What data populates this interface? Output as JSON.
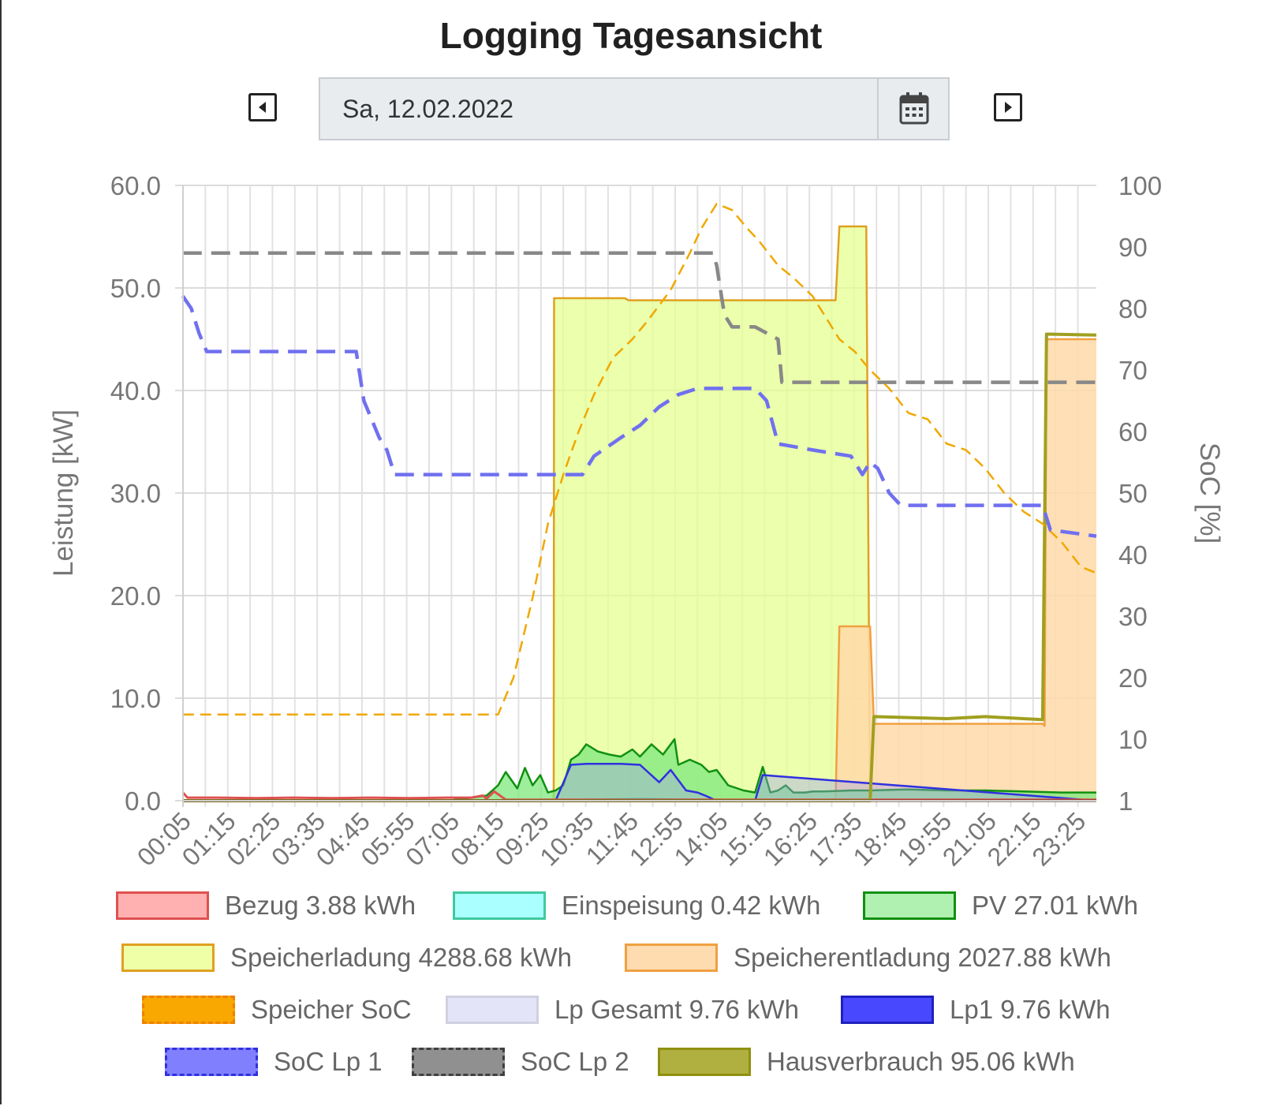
{
  "header": {
    "title": "Logging Tagesansicht",
    "date_value": "Sa, 12.02.2022"
  },
  "chart_data": {
    "type": "area",
    "y_left": {
      "label": "Leistung [kW]",
      "range": [
        0,
        60
      ],
      "ticks": [
        "0.0",
        "10.0",
        "20.0",
        "30.0",
        "40.0",
        "50.0",
        "60.0"
      ]
    },
    "y_right": {
      "label": "SoC [%]",
      "range": [
        0,
        100
      ],
      "ticks": [
        "1",
        "10",
        "20",
        "30",
        "40",
        "50",
        "60",
        "70",
        "80",
        "90",
        "100"
      ]
    },
    "x_ticks": [
      "00:05",
      "01:15",
      "02:25",
      "03:35",
      "04:45",
      "05:55",
      "07:05",
      "08:15",
      "09:25",
      "10:35",
      "11:45",
      "12:55",
      "14:05",
      "15:15",
      "16:25",
      "17:35",
      "18:45",
      "19:55",
      "21:05",
      "22:15",
      "23:25"
    ],
    "x_unit": "hours",
    "grid": true,
    "legend_position": "bottom",
    "series": [
      {
        "name": "Bezug 3.88 kWh",
        "axis": "left",
        "color": "#e05050",
        "x": [
          0.08,
          0.2,
          1.0,
          2.0,
          3.0,
          4.0,
          5.0,
          6.0,
          7.0,
          7.6,
          7.9,
          8.0,
          8.2,
          8.5,
          9.0,
          12.0,
          15.0,
          18.0,
          21.0,
          23.0,
          23.9
        ],
        "y": [
          0.8,
          0.3,
          0.3,
          0.25,
          0.3,
          0.25,
          0.3,
          0.25,
          0.3,
          0.3,
          0.5,
          0.2,
          0.9,
          0.1,
          0.1,
          0.1,
          0.1,
          0.1,
          0.1,
          0.1,
          0.1
        ]
      },
      {
        "name": "Einspeisung 0.42 kWh",
        "axis": "left",
        "color": "#40c8b0",
        "x": [
          0.08,
          8.0,
          10.0,
          12.0,
          14.0,
          16.0,
          23.9
        ],
        "y": [
          0,
          0,
          0.1,
          0.2,
          0.1,
          0,
          0
        ]
      },
      {
        "name": "PV 27.01 kWh",
        "axis": "left",
        "color": "#109010",
        "x": [
          0.08,
          7.0,
          8.0,
          8.3,
          8.5,
          8.8,
          9.0,
          9.2,
          9.4,
          9.6,
          9.8,
          10.0,
          10.2,
          10.4,
          10.6,
          10.9,
          11.2,
          11.5,
          11.8,
          12.0,
          12.3,
          12.6,
          12.9,
          13.0,
          13.3,
          13.6,
          13.8,
          14.0,
          14.3,
          14.7,
          15.0,
          15.2,
          15.4,
          15.6,
          15.8,
          16.0,
          16.3,
          16.5,
          16.8,
          17.5,
          18.0,
          19.0,
          20.0,
          21.0,
          22.0,
          23.0,
          23.9
        ],
        "y": [
          0,
          0,
          0.5,
          1.5,
          2.8,
          1.2,
          3.2,
          1.5,
          2.5,
          0.8,
          1.0,
          1.5,
          4.0,
          4.5,
          5.5,
          4.8,
          4.5,
          4.3,
          5.0,
          4.3,
          5.5,
          4.5,
          6.0,
          3.5,
          4.0,
          3.5,
          2.8,
          3.0,
          1.5,
          1.0,
          0.8,
          3.3,
          0.8,
          1.0,
          1.5,
          0.8,
          0.8,
          0.9,
          0.9,
          1.0,
          1.0,
          1.1,
          1.0,
          1.0,
          0.9,
          0.8,
          0.8
        ]
      },
      {
        "name": "Speicherladung 4288.68 kWh",
        "axis": "left",
        "color": "#e0a020",
        "x": [
          0.08,
          9.75,
          9.76,
          11.6,
          11.7,
          17.1,
          17.2,
          17.9,
          18.0,
          23.9
        ],
        "y": [
          0,
          0,
          49.0,
          49.0,
          48.8,
          48.8,
          56.0,
          56.0,
          0,
          0
        ]
      },
      {
        "name": "Speicherentladung 2027.88 kWh",
        "axis": "left",
        "color": "#f0a040",
        "x": [
          0.08,
          17.1,
          17.2,
          18.0,
          18.1,
          22.5,
          22.55,
          22.6,
          23.9
        ],
        "y": [
          0,
          0,
          17.0,
          17.0,
          7.5,
          7.5,
          7.3,
          45.0,
          45.0
        ]
      },
      {
        "name": "Speicher SoC",
        "axis": "right",
        "color": "#f0a800",
        "x": [
          0.08,
          8.3,
          8.7,
          9.2,
          9.6,
          10.0,
          10.4,
          10.8,
          11.3,
          11.8,
          12.2,
          12.8,
          13.3,
          13.6,
          14.0,
          14.4,
          14.8,
          15.1,
          15.6,
          16.0,
          16.5,
          16.8,
          17.2,
          17.6,
          18.0,
          18.5,
          19.0,
          19.5,
          20.0,
          20.5,
          21.0,
          21.5,
          22.0,
          22.5,
          23.0,
          23.5,
          23.9
        ],
        "y": [
          14,
          14,
          20,
          33,
          45,
          53,
          60,
          66,
          72,
          75,
          78,
          83,
          89,
          93,
          97,
          96,
          93,
          91,
          87,
          85,
          82,
          79,
          75,
          73,
          70,
          67,
          63,
          62,
          58,
          57,
          54,
          50,
          47,
          45,
          42,
          38,
          37
        ]
      },
      {
        "name": "Lp Gesamt 9.76 kWh",
        "axis": "left",
        "color": "#9090e0",
        "x": [
          0.08,
          9.8,
          10.2,
          10.6,
          11.0,
          11.5,
          12.0,
          12.5,
          12.8,
          13.2,
          13.5,
          13.7,
          14.0,
          14.6,
          15.0,
          15.2,
          23.9
        ],
        "y": [
          0,
          0,
          3.5,
          3.6,
          3.6,
          3.6,
          3.5,
          1.8,
          3.0,
          1.0,
          0.8,
          0.5,
          0,
          0,
          0,
          2.5,
          0
        ]
      },
      {
        "name": "Lp1 9.76 kWh",
        "axis": "left",
        "color": "#3030e0",
        "x": [
          0.08,
          9.8,
          10.2,
          10.6,
          11.0,
          11.5,
          12.0,
          12.5,
          12.8,
          13.2,
          13.5,
          13.7,
          14.0,
          14.6,
          15.0,
          15.2,
          23.9
        ],
        "y": [
          0,
          0,
          3.5,
          3.6,
          3.6,
          3.6,
          3.5,
          1.8,
          3.0,
          1.0,
          0.8,
          0.5,
          0,
          0,
          0,
          2.5,
          0
        ]
      },
      {
        "name": "SoC Lp 1",
        "axis": "right",
        "color": "#7070f0",
        "x": [
          0.08,
          0.3,
          0.5,
          0.7,
          4.6,
          4.8,
          5.0,
          5.2,
          5.4,
          5.6,
          10.5,
          10.8,
          11.5,
          12.0,
          12.5,
          13.0,
          13.5,
          14.0,
          14.5,
          15.0,
          15.3,
          15.6,
          16.5,
          17.5,
          17.8,
          18.0,
          18.2,
          18.5,
          18.8,
          22.5,
          22.7,
          23.9
        ],
        "y": [
          82,
          80,
          76,
          73,
          73,
          65,
          62,
          59,
          57,
          53,
          53,
          56,
          59,
          61,
          64,
          66,
          67,
          67,
          67,
          67,
          65,
          58,
          57,
          56,
          53,
          55,
          54,
          50,
          48,
          48,
          44,
          43
        ]
      },
      {
        "name": "SoC Lp 2",
        "axis": "right",
        "color": "#888888",
        "x": [
          0.08,
          13.9,
          14.0,
          14.1,
          14.2,
          14.4,
          15.0,
          15.6,
          15.7,
          23.9
        ],
        "y": [
          89,
          89,
          87,
          83,
          79,
          77,
          77,
          75,
          68,
          68
        ]
      },
      {
        "name": "Hausverbrauch 95.06 kWh",
        "axis": "left",
        "color": "#a0a020",
        "x": [
          0.08,
          18.0,
          18.1,
          20.0,
          21.0,
          22.0,
          22.5,
          22.6,
          23.9
        ],
        "y": [
          0,
          0,
          8.2,
          8.0,
          8.2,
          8.0,
          7.9,
          45.5,
          45.4
        ]
      }
    ]
  },
  "legend": [
    {
      "label": "Bezug 3.88 kWh",
      "fill": "#ffb0b0",
      "border": "#e05050",
      "dash": false
    },
    {
      "label": "Einspeisung 0.42 kWh",
      "fill": "#aaffff",
      "border": "#40c8a0",
      "dash": false
    },
    {
      "label": "PV 27.01 kWh",
      "fill": "#b0f0b0",
      "border": "#109010",
      "dash": false
    },
    {
      "label": "Speicherladung 4288.68 kWh",
      "fill": "#eeffa8",
      "border": "#e0a020",
      "dash": false
    },
    {
      "label": "Speicherentladung 2027.88 kWh",
      "fill": "#ffdcb0",
      "border": "#f0a040",
      "dash": false
    },
    {
      "label": "Speicher SoC",
      "fill": "#f8a800",
      "border": "#f08000",
      "dash": true
    },
    {
      "label": "Lp Gesamt 9.76 kWh",
      "fill": "#e4e4f8",
      "border": "#d0d0e0",
      "dash": false
    },
    {
      "label": "Lp1 9.76 kWh",
      "fill": "#4848ff",
      "border": "#2020c0",
      "dash": false
    },
    {
      "label": "SoC Lp 1",
      "fill": "#8080ff",
      "border": "#3030e0",
      "dash": true
    },
    {
      "label": "SoC Lp 2",
      "fill": "#909090",
      "border": "#404040",
      "dash": true
    },
    {
      "label": "Hausverbrauch 95.06 kWh",
      "fill": "#b0b040",
      "border": "#909010",
      "dash": false
    }
  ]
}
